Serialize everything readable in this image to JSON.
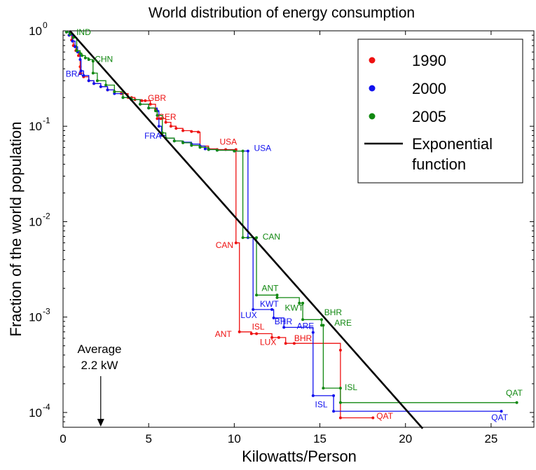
{
  "chart_data": {
    "type": "line",
    "title": "World distribution of energy consumption",
    "xlabel": "Kilowatts/Person",
    "ylabel": "Fraction of the world population",
    "xlim": [
      0,
      27.5
    ],
    "ylim": [
      7e-05,
      1
    ],
    "y_scale": "log",
    "x_ticks": [
      0,
      5,
      10,
      15,
      20,
      25
    ],
    "x_tick_labels": [
      "0",
      "5",
      "10",
      "15",
      "20",
      "25"
    ],
    "y_ticks": [
      1,
      0.1,
      0.01,
      0.001,
      0.0001
    ],
    "y_tick_labels": [
      {
        "base": "10",
        "exp": "0"
      },
      {
        "base": "10",
        "exp": "-1"
      },
      {
        "base": "10",
        "exp": "-2"
      },
      {
        "base": "10",
        "exp": "-3"
      },
      {
        "base": "10",
        "exp": "-4"
      }
    ],
    "grid": false,
    "legend_position": "top-right",
    "series": [
      {
        "name": "1990",
        "color": "#ee1111",
        "marker": "point",
        "step": true,
        "points": [
          [
            0.2,
            0.97
          ],
          [
            0.35,
            0.9
          ],
          [
            0.5,
            0.8
          ],
          [
            0.6,
            0.7
          ],
          [
            0.75,
            0.62
          ],
          [
            0.9,
            0.55
          ],
          [
            1.0,
            0.42
          ],
          [
            1.0,
            0.36
          ],
          [
            1.2,
            0.33
          ],
          [
            1.5,
            0.3
          ],
          [
            1.8,
            0.28
          ],
          [
            2.2,
            0.26
          ],
          [
            2.6,
            0.24
          ],
          [
            3.0,
            0.23
          ],
          [
            3.4,
            0.22
          ],
          [
            3.8,
            0.2
          ],
          [
            4.0,
            0.2
          ],
          [
            4.2,
            0.19
          ],
          [
            4.6,
            0.185
          ],
          [
            4.8,
            0.185
          ],
          [
            5.1,
            0.17
          ],
          [
            5.4,
            0.15
          ],
          [
            5.5,
            0.12
          ],
          [
            5.7,
            0.12
          ],
          [
            6.0,
            0.11
          ],
          [
            6.3,
            0.1
          ],
          [
            6.6,
            0.095
          ],
          [
            7.0,
            0.09
          ],
          [
            7.5,
            0.088
          ],
          [
            7.9,
            0.087
          ],
          [
            8.0,
            0.062
          ],
          [
            8.5,
            0.058
          ],
          [
            9.0,
            0.057
          ],
          [
            9.5,
            0.057
          ],
          [
            10.1,
            0.057
          ],
          [
            10.1,
            0.006
          ],
          [
            10.3,
            0.0007
          ],
          [
            11.0,
            0.00067
          ],
          [
            11.3,
            0.00067
          ],
          [
            12.2,
            0.00061
          ],
          [
            12.6,
            0.00061
          ],
          [
            13.0,
            0.00053
          ],
          [
            13.5,
            0.00053
          ],
          [
            16.2,
            0.00045
          ],
          [
            16.2,
            8.8e-05
          ],
          [
            18.1,
            8.8e-05
          ]
        ]
      },
      {
        "name": "2000",
        "color": "#1111ee",
        "marker": "point",
        "step": true,
        "points": [
          [
            0.2,
            0.97
          ],
          [
            0.35,
            0.9
          ],
          [
            0.55,
            0.78
          ],
          [
            0.7,
            0.68
          ],
          [
            0.85,
            0.6
          ],
          [
            1.0,
            0.5
          ],
          [
            1.05,
            0.38
          ],
          [
            1.2,
            0.34
          ],
          [
            1.5,
            0.3
          ],
          [
            1.8,
            0.28
          ],
          [
            2.2,
            0.26
          ],
          [
            2.6,
            0.24
          ],
          [
            3.0,
            0.22
          ],
          [
            3.5,
            0.2
          ],
          [
            4.0,
            0.19
          ],
          [
            4.5,
            0.17
          ],
          [
            5.0,
            0.155
          ],
          [
            5.5,
            0.145
          ],
          [
            5.6,
            0.1
          ],
          [
            5.75,
            0.08
          ],
          [
            6.0,
            0.075
          ],
          [
            6.5,
            0.07
          ],
          [
            7.0,
            0.068
          ],
          [
            7.5,
            0.065
          ],
          [
            8.0,
            0.062
          ],
          [
            8.3,
            0.058
          ],
          [
            8.5,
            0.057
          ],
          [
            9.0,
            0.056
          ],
          [
            10.0,
            0.055
          ],
          [
            10.8,
            0.055
          ],
          [
            10.8,
            0.0068
          ],
          [
            11.1,
            0.0012
          ],
          [
            12.2,
            0.0012
          ],
          [
            12.3,
            0.00098
          ],
          [
            12.9,
            0.00078
          ],
          [
            14.6,
            0.00069
          ],
          [
            14.6,
            0.00015
          ],
          [
            15.8,
            0.00015
          ],
          [
            15.8,
            0.000103
          ],
          [
            25.6,
            0.000103
          ]
        ]
      },
      {
        "name": "2005",
        "color": "#118811",
        "marker": "point",
        "step": true,
        "points": [
          [
            0.2,
            0.97
          ],
          [
            0.4,
            0.92
          ],
          [
            0.6,
            0.85
          ],
          [
            0.8,
            0.62
          ],
          [
            1.0,
            0.58
          ],
          [
            1.1,
            0.55
          ],
          [
            1.3,
            0.52
          ],
          [
            1.5,
            0.5
          ],
          [
            1.75,
            0.48
          ],
          [
            1.75,
            0.36
          ],
          [
            2.0,
            0.3
          ],
          [
            2.5,
            0.27
          ],
          [
            3.0,
            0.23
          ],
          [
            3.5,
            0.2
          ],
          [
            4.0,
            0.19
          ],
          [
            4.5,
            0.17
          ],
          [
            5.0,
            0.155
          ],
          [
            5.4,
            0.145
          ],
          [
            5.5,
            0.13
          ],
          [
            5.8,
            0.085
          ],
          [
            6.0,
            0.075
          ],
          [
            6.5,
            0.07
          ],
          [
            7.0,
            0.067
          ],
          [
            7.5,
            0.063
          ],
          [
            8.0,
            0.06
          ],
          [
            8.5,
            0.057
          ],
          [
            9.0,
            0.056
          ],
          [
            10.0,
            0.055
          ],
          [
            10.5,
            0.055
          ],
          [
            10.5,
            0.0068
          ],
          [
            11.3,
            0.0068
          ],
          [
            11.3,
            0.0017
          ],
          [
            12.5,
            0.0017
          ],
          [
            12.5,
            0.0016
          ],
          [
            13.8,
            0.0014
          ],
          [
            14.0,
            0.0014
          ],
          [
            14.0,
            0.00094
          ],
          [
            15.1,
            0.00094
          ],
          [
            15.1,
            0.00082
          ],
          [
            15.2,
            0.00082
          ],
          [
            15.2,
            0.00018
          ],
          [
            16.2,
            0.00018
          ],
          [
            16.2,
            0.000127
          ],
          [
            26.5,
            0.000127
          ]
        ]
      },
      {
        "name": "Exponential function",
        "color": "#000000",
        "marker": "none",
        "step": false,
        "points": [
          [
            0.4,
            1.0
          ],
          [
            21.0,
            6.8e-05
          ]
        ]
      }
    ],
    "country_labels": [
      {
        "text": "IND",
        "x": 0.78,
        "y": 0.9,
        "series": "2005",
        "anchor": "start"
      },
      {
        "text": "CHN",
        "x": 1.85,
        "y": 0.47,
        "series": "2005",
        "anchor": "start"
      },
      {
        "text": "BRA",
        "x": 0.15,
        "y": 0.33,
        "series": "2000",
        "anchor": "start"
      },
      {
        "text": "GBR",
        "x": 4.95,
        "y": 0.185,
        "series": "1990",
        "anchor": "start"
      },
      {
        "text": "GER",
        "x": 5.55,
        "y": 0.117,
        "series": "1990",
        "anchor": "start"
      },
      {
        "text": "FRA",
        "x": 4.75,
        "y": 0.074,
        "series": "2000",
        "anchor": "start"
      },
      {
        "text": "USA",
        "x": 9.65,
        "y": 0.064,
        "series": "1990",
        "anchor": "middle"
      },
      {
        "text": "USA",
        "x": 11.15,
        "y": 0.055,
        "series": "2000",
        "anchor": "start"
      },
      {
        "text": "CAN",
        "x": 9.95,
        "y": 0.0053,
        "series": "1990",
        "anchor": "end"
      },
      {
        "text": "CAN",
        "x": 11.65,
        "y": 0.0065,
        "series": "2005",
        "anchor": "start"
      },
      {
        "text": "ANT",
        "x": 11.6,
        "y": 0.00188,
        "series": "2005",
        "anchor": "start"
      },
      {
        "text": "KWT",
        "x": 11.5,
        "y": 0.00128,
        "series": "2000",
        "anchor": "start"
      },
      {
        "text": "KWT",
        "x": 12.95,
        "y": 0.00117,
        "series": "2005",
        "anchor": "start"
      },
      {
        "text": "LUX",
        "x": 10.85,
        "y": 0.00098,
        "series": "2000",
        "anchor": "middle"
      },
      {
        "text": "BHR",
        "x": 12.35,
        "y": 0.00084,
        "series": "2000",
        "anchor": "start"
      },
      {
        "text": "BHR",
        "x": 15.25,
        "y": 0.00105,
        "series": "2005",
        "anchor": "start"
      },
      {
        "text": "ARE",
        "x": 13.65,
        "y": 0.00075,
        "series": "2000",
        "anchor": "start"
      },
      {
        "text": "ARE",
        "x": 15.85,
        "y": 0.00081,
        "series": "2005",
        "anchor": "start"
      },
      {
        "text": "ISL",
        "x": 11.4,
        "y": 0.00074,
        "series": "1990",
        "anchor": "middle"
      },
      {
        "text": "ANT",
        "x": 9.85,
        "y": 0.00062,
        "series": "1990",
        "anchor": "end"
      },
      {
        "text": "LUX",
        "x": 11.5,
        "y": 0.00051,
        "series": "1990",
        "anchor": "start"
      },
      {
        "text": "BHR",
        "x": 13.5,
        "y": 0.00056,
        "series": "1990",
        "anchor": "start"
      },
      {
        "text": "ISL",
        "x": 15.45,
        "y": 0.000113,
        "series": "2000",
        "anchor": "end"
      },
      {
        "text": "ISL",
        "x": 16.45,
        "y": 0.000171,
        "series": "2005",
        "anchor": "start"
      },
      {
        "text": "QAT",
        "x": 18.3,
        "y": 8.6e-05,
        "series": "1990",
        "anchor": "start"
      },
      {
        "text": "QAT",
        "x": 25.5,
        "y": 8.3e-05,
        "series": "2000",
        "anchor": "middle"
      },
      {
        "text": "QAT",
        "x": 26.35,
        "y": 0.00015,
        "series": "2005",
        "anchor": "middle"
      }
    ],
    "annotations": [
      {
        "line1": "Average",
        "line2": "2.2 kW",
        "x": 2.2
      }
    ]
  }
}
